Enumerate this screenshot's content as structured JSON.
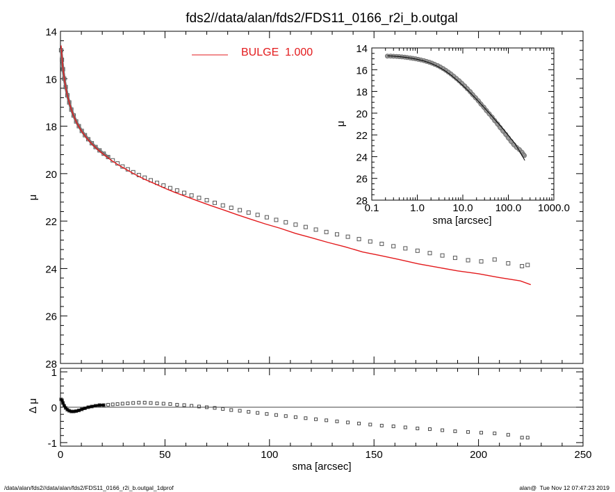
{
  "chart_data": [
    {
      "panel": "main",
      "type": "scatter",
      "title": "fds2//data/alan/fds2/FDS11_0166_r2i_b.outgal",
      "xlabel": "",
      "ylabel": "μ",
      "xlim": [
        0,
        250
      ],
      "ylim": [
        28,
        14
      ],
      "y_inverted": true,
      "y_ticks": [
        "14",
        "16",
        "18",
        "20",
        "22",
        "24",
        "26",
        "28"
      ],
      "legend": {
        "placement": "top-center",
        "entries": [
          {
            "label": "BULGE  1.000",
            "color": "#e31a1c"
          }
        ]
      },
      "series": [
        {
          "name": "data",
          "style": "open-squares",
          "color": "#555555",
          "x": [
            0.3,
            0.7,
            1.2,
            1.8,
            2.5,
            3.3,
            4.2,
            5.2,
            6.3,
            7.5,
            8.8,
            10.2,
            11.7,
            13.3,
            15,
            16.8,
            18.7,
            20.7,
            22.8,
            25,
            27.3,
            29.7,
            32.2,
            34.8,
            37.5,
            40.3,
            43.2,
            46.2,
            49.3,
            52.5,
            55.8,
            59.2,
            62.7,
            66.3,
            70,
            73.8,
            77.7,
            81.7,
            85.8,
            90,
            94.3,
            98.7,
            103.2,
            107.8,
            112.5,
            117.3,
            122.2,
            127.2,
            132.3,
            137.5,
            142.8,
            148.2,
            153.7,
            159.3,
            165,
            170.8,
            176.7,
            182.7,
            188.8,
            195,
            201.3,
            207.7,
            214.2,
            220.8,
            223.5
          ],
          "y": [
            14.8,
            15.2,
            15.6,
            16.0,
            16.35,
            16.7,
            17.0,
            17.3,
            17.55,
            17.8,
            18.0,
            18.2,
            18.38,
            18.55,
            18.72,
            18.88,
            19.02,
            19.16,
            19.3,
            19.44,
            19.57,
            19.7,
            19.82,
            19.94,
            20.06,
            20.17,
            20.28,
            20.39,
            20.5,
            20.61,
            20.71,
            20.81,
            20.92,
            21.02,
            21.12,
            21.23,
            21.34,
            21.44,
            21.54,
            21.64,
            21.74,
            21.84,
            21.95,
            22.05,
            22.15,
            22.25,
            22.36,
            22.46,
            22.56,
            22.66,
            22.76,
            22.86,
            22.96,
            23.06,
            23.15,
            23.25,
            23.35,
            23.45,
            23.55,
            23.65,
            23.7,
            23.62,
            23.78,
            23.9,
            23.85
          ]
        },
        {
          "name": "BULGE  1.000",
          "style": "line",
          "color": "#e31a1c",
          "x": [
            0.3,
            1,
            2,
            3,
            4.5,
            6,
            8,
            10,
            12.5,
            15,
            18,
            21,
            24.5,
            28,
            32,
            36,
            40.5,
            45,
            50,
            55,
            60.5,
            66,
            72,
            78,
            84.5,
            91,
            98,
            105,
            112.5,
            120,
            128,
            136,
            144.5,
            153,
            162,
            171,
            180.5,
            190,
            200,
            210,
            220,
            225
          ],
          "y": [
            14.6,
            15.4,
            16.1,
            16.6,
            17.1,
            17.5,
            17.9,
            18.2,
            18.5,
            18.75,
            19.0,
            19.22,
            19.45,
            19.65,
            19.85,
            20.05,
            20.25,
            20.42,
            20.62,
            20.8,
            20.98,
            21.16,
            21.35,
            21.53,
            21.73,
            21.92,
            22.12,
            22.3,
            22.52,
            22.7,
            22.9,
            23.08,
            23.3,
            23.45,
            23.62,
            23.8,
            23.95,
            24.1,
            24.22,
            24.38,
            24.52,
            24.68
          ]
        }
      ]
    },
    {
      "panel": "residual",
      "type": "scatter",
      "xlabel": "sma [arcsec]",
      "ylabel": "Δ μ",
      "xlim": [
        0,
        250
      ],
      "ylim": [
        -1.1,
        1.1
      ],
      "x_ticks": [
        "0",
        "50",
        "100",
        "150",
        "200",
        "250"
      ],
      "y_ticks": [
        "1",
        "0",
        "-1"
      ],
      "zero_line": true,
      "series": [
        {
          "name": "residual",
          "style": "open-squares",
          "color": "#444444",
          "x": [
            0.3,
            0.7,
            1.2,
            1.8,
            2.5,
            3.3,
            4.2,
            5.2,
            6.3,
            7.5,
            8.8,
            10.2,
            11.7,
            13.3,
            15,
            16.8,
            18.7,
            20.7,
            22.8,
            25,
            27.3,
            29.7,
            32.2,
            34.8,
            37.5,
            40.3,
            43.2,
            46.2,
            49.3,
            52.5,
            55.8,
            59.2,
            62.7,
            66.3,
            70,
            73.8,
            77.7,
            81.7,
            85.8,
            90,
            94.3,
            98.7,
            103.2,
            107.8,
            112.5,
            117.3,
            122.2,
            127.2,
            132.3,
            137.5,
            142.8,
            148.2,
            153.7,
            159.3,
            165,
            170.8,
            176.7,
            182.7,
            188.8,
            195,
            201.3,
            207.7,
            214.2,
            220.8,
            223.5
          ],
          "y": [
            0.22,
            0.2,
            0.12,
            0.04,
            -0.02,
            -0.07,
            -0.1,
            -0.12,
            -0.12,
            -0.11,
            -0.09,
            -0.06,
            -0.03,
            0.0,
            0.02,
            0.04,
            0.06,
            0.06,
            0.07,
            0.08,
            0.09,
            0.1,
            0.11,
            0.12,
            0.13,
            0.13,
            0.12,
            0.11,
            0.1,
            0.09,
            0.07,
            0.06,
            0.04,
            0.02,
            0.0,
            -0.02,
            -0.05,
            -0.08,
            -0.1,
            -0.13,
            -0.16,
            -0.19,
            -0.22,
            -0.25,
            -0.28,
            -0.31,
            -0.34,
            -0.37,
            -0.4,
            -0.43,
            -0.46,
            -0.49,
            -0.52,
            -0.54,
            -0.57,
            -0.6,
            -0.62,
            -0.65,
            -0.68,
            -0.7,
            -0.72,
            -0.74,
            -0.78,
            -0.86,
            -0.86
          ]
        }
      ]
    },
    {
      "panel": "inset",
      "type": "line",
      "xlabel": "sma [arcsec]",
      "ylabel": "μ",
      "x_scale": "log",
      "xlim": [
        0.1,
        1000
      ],
      "ylim": [
        28,
        14
      ],
      "y_inverted": true,
      "x_ticks": [
        "0.1",
        "1.0",
        "10.0",
        "100.0",
        "1000.0"
      ],
      "y_ticks": [
        "14",
        "16",
        "18",
        "20",
        "22",
        "24",
        "26",
        "28"
      ],
      "series": [
        {
          "name": "data",
          "style": "open-circles",
          "color": "#777777",
          "x": [
            0.22,
            0.26,
            0.3,
            0.35,
            0.4,
            0.46,
            0.53,
            0.6,
            0.7,
            0.8,
            0.92,
            1.05,
            1.2,
            1.4,
            1.6,
            1.85,
            2.1,
            2.4,
            2.8,
            3.2,
            3.7,
            4.2,
            4.8,
            5.5,
            6.3,
            7.2,
            8.3,
            9.5,
            11,
            12.5,
            14.5,
            16.5,
            19,
            22,
            25,
            29,
            33,
            38,
            44,
            50,
            58,
            66,
            76,
            88,
            100,
            115,
            132,
            152,
            175,
            200,
            215,
            225
          ],
          "y": [
            14.75,
            14.75,
            14.77,
            14.78,
            14.8,
            14.82,
            14.85,
            14.88,
            14.92,
            14.96,
            15.0,
            15.05,
            15.1,
            15.17,
            15.24,
            15.32,
            15.4,
            15.5,
            15.62,
            15.75,
            15.9,
            16.05,
            16.22,
            16.4,
            16.6,
            16.8,
            17.02,
            17.25,
            17.5,
            17.75,
            18.02,
            18.3,
            18.58,
            18.87,
            19.16,
            19.46,
            19.76,
            20.06,
            20.37,
            20.68,
            21.0,
            21.32,
            21.64,
            21.96,
            22.28,
            22.6,
            22.9,
            23.15,
            23.35,
            23.6,
            23.8,
            23.9
          ]
        },
        {
          "name": "model",
          "style": "line",
          "color": "#000000",
          "x": [
            0.22,
            0.3,
            0.4,
            0.55,
            0.75,
            1.0,
            1.4,
            2.0,
            2.8,
            4.0,
            5.5,
            7.5,
            10,
            14,
            20,
            28,
            40,
            55,
            75,
            100,
            140,
            180,
            230
          ],
          "y": [
            14.72,
            14.76,
            14.8,
            14.86,
            14.95,
            15.05,
            15.2,
            15.42,
            15.7,
            16.08,
            16.5,
            16.98,
            17.45,
            18.05,
            18.72,
            19.38,
            20.1,
            20.76,
            21.4,
            22.05,
            22.8,
            23.55,
            24.35
          ]
        }
      ]
    }
  ],
  "footer": {
    "left": "/data/alan/fds2//data/alan/fds2/FDS11_0166_r2i_b.outgal_1dprof",
    "right": "alan@  Tue Nov 12 07:47:23 2019"
  }
}
